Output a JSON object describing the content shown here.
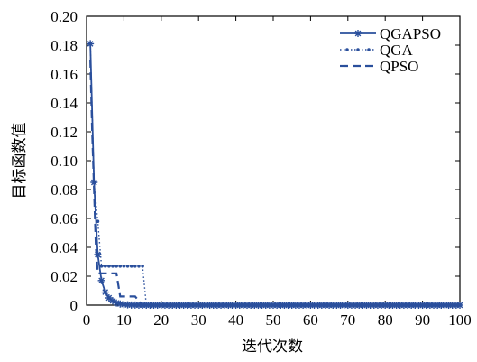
{
  "chart_data": {
    "type": "line",
    "xlabel": "迭代次数",
    "ylabel": "目标函数值",
    "xlim": [
      0,
      100
    ],
    "ylim": [
      0,
      0.2
    ],
    "xticks": [
      0,
      10,
      20,
      30,
      40,
      50,
      60,
      70,
      80,
      90,
      100
    ],
    "yticks": [
      0,
      0.02,
      0.04,
      0.06,
      0.08,
      0.1,
      0.12,
      0.14,
      0.16,
      0.18,
      0.2
    ],
    "xtick_labels": [
      "0",
      "10",
      "20",
      "30",
      "40",
      "50",
      "60",
      "70",
      "80",
      "90",
      "100"
    ],
    "ytick_labels": [
      "0",
      "0.02",
      "0.04",
      "0.06",
      "0.08",
      "0.10",
      "0.12",
      "0.14",
      "0.16",
      "0.18",
      "0.20"
    ],
    "grid": false,
    "legend_position": "top-right",
    "series": [
      {
        "name": "QGAPSO",
        "style": "solid-with-star-markers",
        "color": "#2a4f9c",
        "x": [
          1,
          2,
          3,
          4,
          5,
          6,
          7,
          8,
          9,
          10,
          11,
          12,
          13,
          14,
          15,
          20,
          30,
          40,
          50,
          60,
          70,
          80,
          90,
          100
        ],
        "y": [
          0.181,
          0.085,
          0.035,
          0.017,
          0.009,
          0.005,
          0.003,
          0.0015,
          0.0008,
          0.0004,
          0.0002,
          0.0001,
          5e-05,
          2e-05,
          1e-05,
          0,
          0,
          0,
          0,
          0,
          0,
          0,
          0,
          0
        ]
      },
      {
        "name": "QGA",
        "style": "dotted-with-dot-markers",
        "color": "#2a4f9c",
        "x": [
          1,
          2,
          3,
          4,
          5,
          6,
          7,
          8,
          9,
          10,
          11,
          12,
          13,
          14,
          15,
          16,
          20,
          30,
          40,
          50,
          60,
          70,
          80,
          90,
          100
        ],
        "y": [
          0.181,
          0.085,
          0.058,
          0.027,
          0.027,
          0.027,
          0.027,
          0.027,
          0.027,
          0.027,
          0.027,
          0.027,
          0.027,
          0.027,
          0.027,
          0,
          0,
          0,
          0,
          0,
          0,
          0,
          0,
          0,
          0
        ]
      },
      {
        "name": "QPSO",
        "style": "dashed",
        "color": "#2a4f9c",
        "x": [
          1,
          1.5,
          2,
          2.5,
          3,
          4,
          5,
          6,
          7,
          8,
          9,
          10,
          11,
          12,
          13,
          14,
          15,
          20,
          30,
          40,
          50,
          60,
          70,
          80,
          90,
          100
        ],
        "y": [
          0.17,
          0.12,
          0.08,
          0.04,
          0.022,
          0.022,
          0.022,
          0.022,
          0.022,
          0.022,
          0.006,
          0.006,
          0.006,
          0.006,
          0.006,
          0.003,
          0,
          0,
          0,
          0,
          0,
          0,
          0,
          0,
          0,
          0
        ]
      }
    ]
  }
}
